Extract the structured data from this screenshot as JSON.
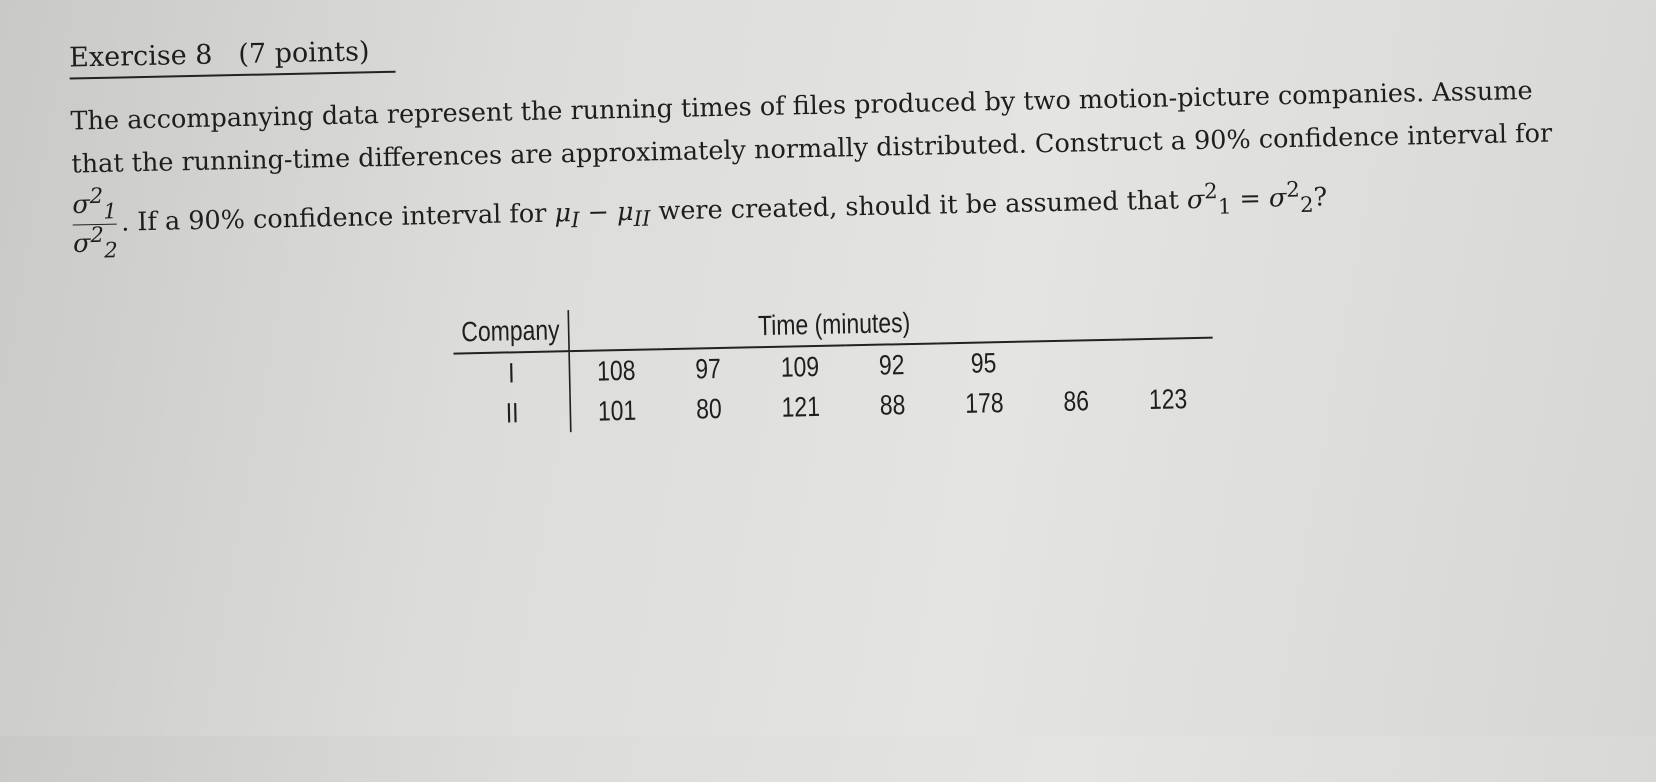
{
  "exercise": {
    "title": "Exercise 8",
    "points": "(7 points)"
  },
  "problem": {
    "line1": "The accompanying data represent the running times of files produced by two motion-picture companies. Assume",
    "line2": "that the running-time differences are approximately normally distributed. Construct a 90% confidence interval for",
    "line3_a": ". If a 90% confidence interval for ",
    "line3_mu": "μ",
    "line3_I": "I",
    "line3_minus": " − ",
    "line3_II": "II",
    "line3_b": " were created, should it be assumed that ",
    "line3_c": "?",
    "sigma": "σ",
    "sq": "2",
    "one": "1",
    "two": "2",
    "eq": " = "
  },
  "table": {
    "company_header": "Company",
    "time_header": "Time (minutes)",
    "rows": [
      {
        "company": "I",
        "values": [
          "108",
          "97",
          "109",
          "92",
          "95",
          "",
          ""
        ]
      },
      {
        "company": "II",
        "values": [
          "101",
          "80",
          "121",
          "88",
          "178",
          "86",
          "123"
        ]
      }
    ]
  }
}
